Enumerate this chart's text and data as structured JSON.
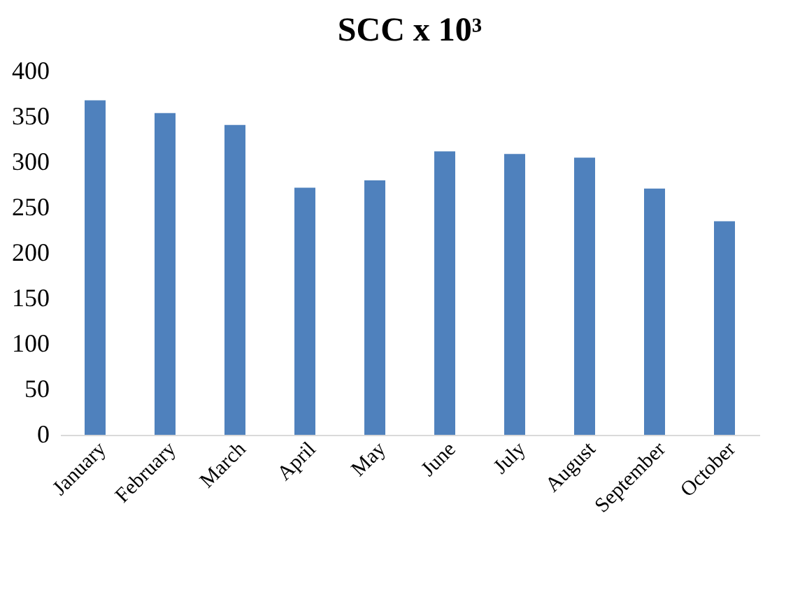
{
  "chart_data": {
    "type": "bar",
    "title": "SCC x 10³",
    "categories": [
      "January",
      "February",
      "March",
      "April",
      "May",
      "June",
      "July",
      "August",
      "September",
      "October"
    ],
    "values": [
      368,
      354,
      341,
      272,
      280,
      312,
      309,
      305,
      271,
      235
    ],
    "color": "#4f81bd",
    "ylim": [
      0,
      400
    ],
    "yticks": [
      0,
      50,
      100,
      150,
      200,
      250,
      300,
      350,
      400
    ],
    "grid": false
  }
}
